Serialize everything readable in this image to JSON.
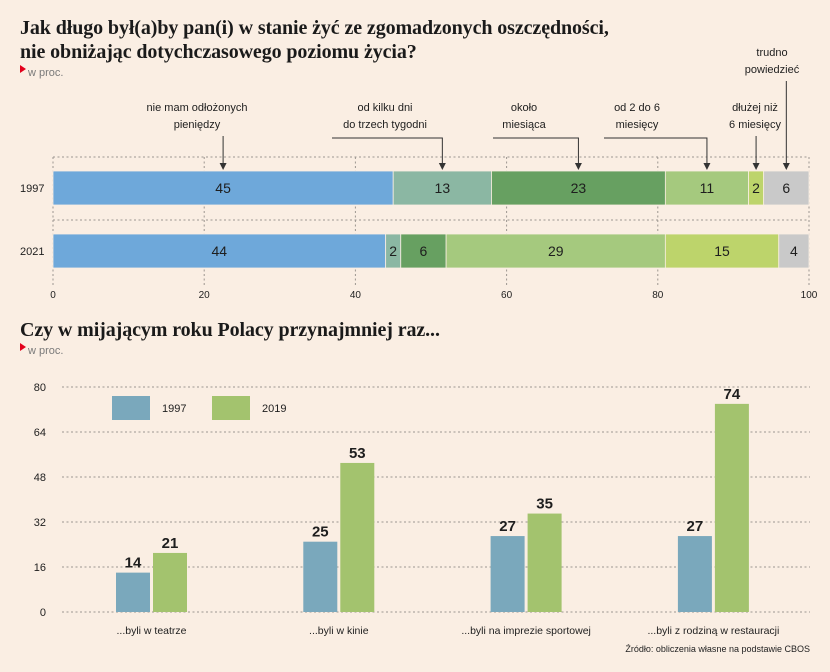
{
  "colors": {
    "background": "#faeee3",
    "marker": "#e3001b"
  },
  "chart_data": [
    {
      "type": "bar",
      "orientation": "horizontal",
      "stacked": true,
      "title": [
        "Jak długo był(a)by pan(i) w stanie żyć ze zgomadzonych oszczędności,",
        "nie obniżając dotychczasowego poziomu życia?"
      ],
      "unit_note": "w proc.",
      "categories": [
        "1997",
        "2021"
      ],
      "series": [
        {
          "label": [
            "nie mam odłożonych",
            "pieniędzy"
          ],
          "color": "#6ea8da",
          "values": [
            45,
            44
          ]
        },
        {
          "label": [
            "od kilku dni",
            "do trzech tygodni"
          ],
          "color": "#8bb7a3",
          "values": [
            13,
            2
          ]
        },
        {
          "label": [
            "około",
            "miesiąca"
          ],
          "color": "#67a061",
          "values": [
            23,
            6
          ]
        },
        {
          "label": [
            "od 2 do 6",
            "miesięcy"
          ],
          "color": "#a5c97e",
          "values": [
            11,
            29
          ]
        },
        {
          "label": [
            "dłużej niż",
            "6 miesięcy"
          ],
          "color": "#bdd46b",
          "values": [
            2,
            15
          ]
        },
        {
          "label": [
            "trudno",
            "powiedzieć"
          ],
          "color": "#c9c9c9",
          "values": [
            6,
            4
          ]
        }
      ],
      "xlim": [
        0,
        100
      ],
      "xticks": [
        0,
        20,
        40,
        60,
        80,
        100
      ],
      "grid": true,
      "legend": "top"
    },
    {
      "type": "bar",
      "title": "Czy w mijającym roku Polacy przynajmniej raz...",
      "unit_note": "w proc.",
      "categories": [
        "...byli w teatrze",
        "...byli w kinie",
        "...byli na imprezie sportowej",
        "...byli z rodziną w restauracji"
      ],
      "series": [
        {
          "name": "1997",
          "color": "#7aa8bc",
          "values": [
            14,
            25,
            27,
            27
          ]
        },
        {
          "name": "2019",
          "color": "#a3c36e",
          "values": [
            21,
            53,
            35,
            74
          ]
        }
      ],
      "ylim": [
        0,
        80
      ],
      "yticks": [
        0,
        16,
        32,
        48,
        64,
        80
      ],
      "grid": true,
      "legend": "top-left"
    }
  ],
  "source": "Źródło: obliczenia własne na podstawie CBOS"
}
